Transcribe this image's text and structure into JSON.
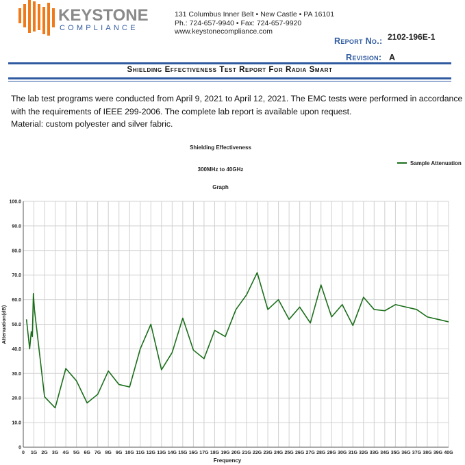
{
  "header": {
    "company_name": "KEYSTONE",
    "company_sub": "COMPLIANCE",
    "address": "131 Columbus Inner Belt • New Castle • PA 16101",
    "phone_fax": "Ph.: 724-657-9940 • Fax: 724-657-9920",
    "website": "www.keystonecompliance.com",
    "report_no_label": "Report No.:",
    "report_no": "2102-196E-1",
    "revision_label": "Revision:",
    "revision": "A",
    "colors": {
      "logo_orange": "#f07a1a",
      "brand_blue": "#2f5aa0",
      "logo_gray": "#8a8a8a"
    }
  },
  "report_title": "Shielding Effectiveness Test Report For Radia Smart",
  "intro": {
    "line1": "The lab test programs were conducted from April 9, 2021 to April 12, 2021. The EMC tests were performed in accordance",
    "line2": "with the requirements of IEEE 299-2006. The complete lab report is available upon request.",
    "line3": "Material: custom polyester and silver fabric."
  },
  "chart_data": {
    "type": "line",
    "title": "Shielding Effectiveness",
    "subtitle": "300MHz to 40GHz",
    "subtitle2": "Graph",
    "xlabel": "Frequency",
    "ylabel": "Attenuation(dB)",
    "xlim": [
      0,
      40
    ],
    "ylim": [
      0,
      100
    ],
    "yticks": [
      "0",
      "10.0",
      "20.0",
      "30.0",
      "40.0",
      "50.0",
      "60.0",
      "70.0",
      "80.0",
      "90.0",
      "100.0"
    ],
    "xticks": [
      "0",
      "1G",
      "2G",
      "3G",
      "4G",
      "5G",
      "6G",
      "7G",
      "8G",
      "9G",
      "10G",
      "11G",
      "12G",
      "13G",
      "14G",
      "15G",
      "16G",
      "17G",
      "18G",
      "19G",
      "20G",
      "21G",
      "22G",
      "23G",
      "24G",
      "25G",
      "26G",
      "27G",
      "28G",
      "29G",
      "30G",
      "31G",
      "32G",
      "33G",
      "34G",
      "35G",
      "36G",
      "37G",
      "38G",
      "39G",
      "40G"
    ],
    "grid": true,
    "legend_position": "top-right",
    "line_color": "#1a6e1a",
    "series": [
      {
        "name": "Sample Attenuation",
        "x": [
          0.3,
          0.6,
          0.75,
          0.85,
          0.95,
          1.05,
          2.0,
          3.0,
          4.0,
          5.0,
          6.0,
          7.0,
          8.0,
          9.0,
          10.0,
          11.0,
          12.0,
          13.0,
          14.0,
          15.0,
          16.0,
          17.0,
          18.0,
          19.0,
          20.0,
          21.0,
          22.0,
          23.0,
          24.0,
          25.0,
          26.0,
          27.0,
          28.0,
          29.0,
          30.0,
          31.0,
          32.0,
          33.0,
          34.0,
          35.0,
          36.0,
          37.0,
          38.0,
          39.0,
          40.0
        ],
        "values": [
          52.0,
          40.0,
          47.0,
          45.0,
          62.5,
          56.0,
          20.5,
          16.0,
          32.0,
          27.0,
          18.0,
          21.5,
          31.0,
          25.5,
          24.5,
          40.0,
          50.0,
          31.5,
          38.5,
          52.5,
          39.5,
          36.0,
          47.5,
          45.0,
          56.0,
          62.0,
          71.0,
          56.0,
          60.0,
          52.0,
          57.0,
          50.5,
          66.0,
          53.0,
          58.0,
          49.5,
          61.0,
          56.0,
          55.5,
          58.0,
          57.0,
          56.0,
          53.0,
          52.0,
          51.0
        ]
      }
    ]
  }
}
